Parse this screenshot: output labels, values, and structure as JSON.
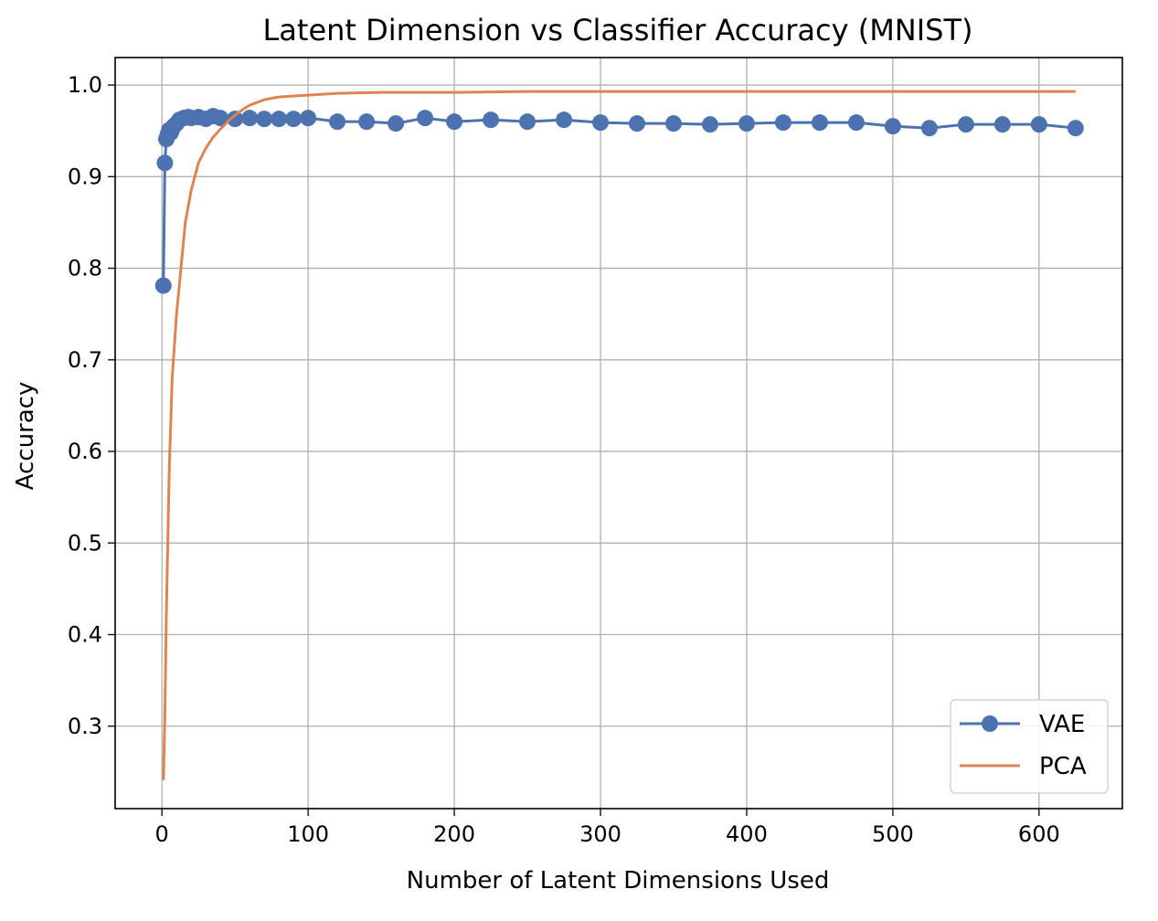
{
  "chart_data": {
    "type": "line",
    "title": "Latent Dimension vs Classifier Accuracy (MNIST)",
    "xlabel": "Number of Latent Dimensions Used",
    "ylabel": "Accuracy",
    "xlim": [
      -32,
      657
    ],
    "ylim": [
      0.21,
      1.03
    ],
    "xticks": [
      0,
      100,
      200,
      300,
      400,
      500,
      600
    ],
    "xtick_labels": [
      "0",
      "100",
      "200",
      "300",
      "400",
      "500",
      "600"
    ],
    "yticks": [
      0.3,
      0.4,
      0.5,
      0.6,
      0.7,
      0.8,
      0.9,
      1.0
    ],
    "ytick_labels": [
      "0.3",
      "0.4",
      "0.5",
      "0.6",
      "0.7",
      "0.8",
      "0.9",
      "1.0"
    ],
    "grid": true,
    "legend_position": "bottom-right",
    "series": [
      {
        "name": "VAE",
        "color": "#4c72b0",
        "marker": "circle",
        "x": [
          1,
          2,
          3,
          4,
          5,
          6,
          7,
          8,
          10,
          12,
          15,
          18,
          20,
          25,
          30,
          35,
          40,
          50,
          60,
          70,
          80,
          90,
          100,
          120,
          140,
          160,
          180,
          200,
          225,
          250,
          275,
          300,
          325,
          350,
          375,
          400,
          425,
          450,
          475,
          500,
          525,
          550,
          575,
          600,
          625
        ],
        "y": [
          0.781,
          0.915,
          0.941,
          0.946,
          0.951,
          0.948,
          0.952,
          0.955,
          0.958,
          0.962,
          0.964,
          0.965,
          0.964,
          0.965,
          0.963,
          0.966,
          0.964,
          0.963,
          0.964,
          0.963,
          0.963,
          0.963,
          0.964,
          0.96,
          0.96,
          0.958,
          0.964,
          0.96,
          0.962,
          0.96,
          0.962,
          0.959,
          0.958,
          0.958,
          0.957,
          0.958,
          0.959,
          0.959,
          0.959,
          0.955,
          0.953,
          0.957,
          0.957,
          0.957,
          0.953
        ]
      },
      {
        "name": "PCA",
        "color": "#dd8452",
        "marker": "none",
        "x": [
          1,
          2,
          3,
          5,
          7,
          10,
          13,
          16,
          20,
          25,
          30,
          35,
          40,
          45,
          50,
          55,
          60,
          70,
          80,
          100,
          120,
          150,
          200,
          250,
          300,
          400,
          500,
          600,
          625
        ],
        "y": [
          0.241,
          0.31,
          0.42,
          0.58,
          0.68,
          0.75,
          0.8,
          0.85,
          0.885,
          0.915,
          0.931,
          0.943,
          0.952,
          0.96,
          0.967,
          0.973,
          0.978,
          0.984,
          0.987,
          0.989,
          0.991,
          0.992,
          0.992,
          0.993,
          0.993,
          0.993,
          0.993,
          0.993,
          0.993
        ]
      }
    ]
  }
}
